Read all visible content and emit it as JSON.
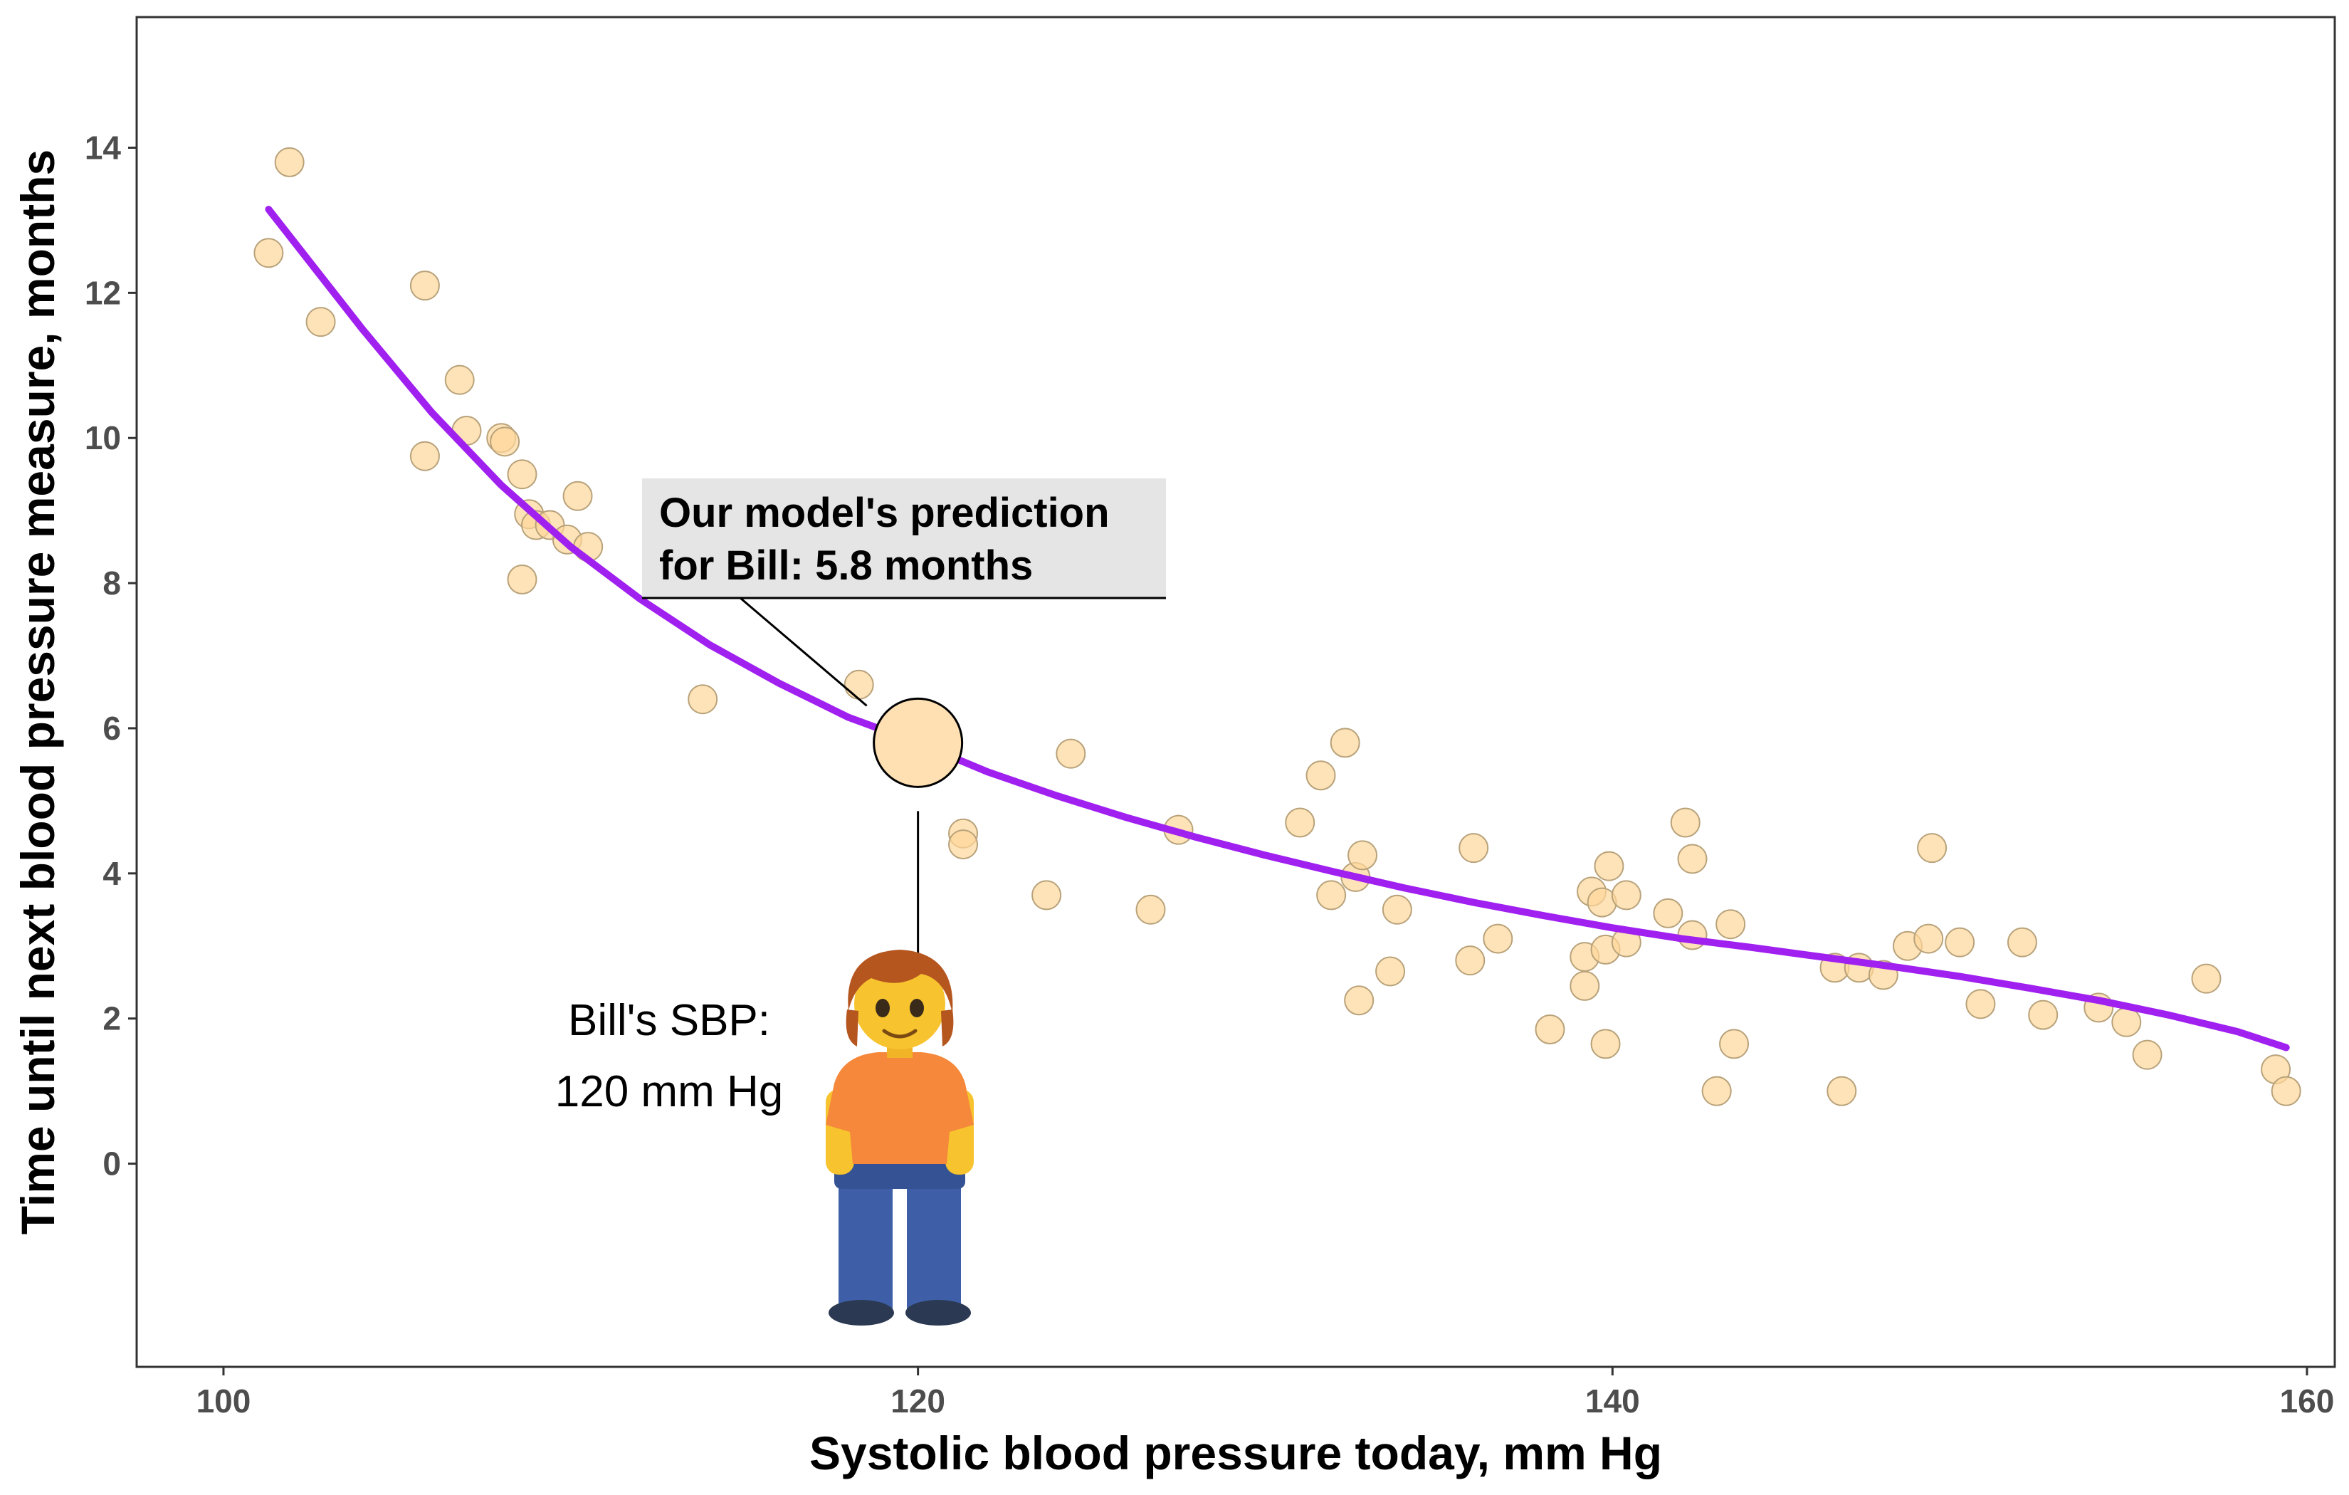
{
  "chart_data": {
    "type": "scatter",
    "xlabel": "Systolic blood pressure today, mm Hg",
    "ylabel": "Time until next blood pressure measure, months",
    "xlim": [
      97.5,
      160.8
    ],
    "ylim": [
      -2.8,
      15.8
    ],
    "x_ticks": [
      100,
      120,
      140,
      160
    ],
    "y_ticks": [
      0,
      2,
      4,
      6,
      8,
      10,
      12,
      14
    ],
    "grid": false,
    "legend": "none",
    "colors": {
      "points_fill": "#ffd79a",
      "points_stroke": "#b8a27a",
      "fit_line": "#a020f0",
      "callout_bg": "#e5e5e5",
      "panel_border": "#333333",
      "tick_text": "#4d4d4d"
    },
    "series": [
      {
        "kind": "points",
        "points": [
          [
            101.3,
            12.55
          ],
          [
            101.9,
            13.8
          ],
          [
            102.8,
            11.6
          ],
          [
            105.8,
            12.1
          ],
          [
            105.8,
            9.75
          ],
          [
            106.8,
            10.8
          ],
          [
            107.0,
            10.1
          ],
          [
            108.0,
            10.0
          ],
          [
            108.1,
            9.95
          ],
          [
            108.6,
            9.5
          ],
          [
            108.8,
            8.95
          ],
          [
            109.0,
            8.8
          ],
          [
            109.4,
            8.8
          ],
          [
            109.9,
            8.6
          ],
          [
            110.2,
            9.2
          ],
          [
            110.5,
            8.5
          ],
          [
            108.6,
            8.05
          ],
          [
            113.8,
            6.4
          ],
          [
            118.3,
            6.6
          ],
          [
            121.3,
            4.55
          ],
          [
            121.3,
            4.4
          ],
          [
            123.7,
            3.7
          ],
          [
            124.4,
            5.65
          ],
          [
            126.7,
            3.5
          ],
          [
            127.5,
            4.6
          ],
          [
            131.0,
            4.7
          ],
          [
            131.6,
            5.35
          ],
          [
            132.3,
            5.8
          ],
          [
            131.9,
            3.7
          ],
          [
            132.6,
            3.95
          ],
          [
            132.8,
            4.25
          ],
          [
            132.7,
            2.25
          ],
          [
            133.6,
            2.65
          ],
          [
            133.8,
            3.5
          ],
          [
            135.9,
            2.8
          ],
          [
            136.0,
            4.35
          ],
          [
            136.7,
            3.1
          ],
          [
            138.2,
            1.85
          ],
          [
            139.2,
            2.85
          ],
          [
            139.2,
            2.45
          ],
          [
            139.4,
            3.75
          ],
          [
            139.7,
            3.6
          ],
          [
            139.8,
            2.95
          ],
          [
            139.8,
            1.65
          ],
          [
            139.9,
            4.1
          ],
          [
            140.4,
            3.7
          ],
          [
            140.4,
            3.05
          ],
          [
            141.6,
            3.45
          ],
          [
            142.1,
            4.7
          ],
          [
            142.3,
            4.2
          ],
          [
            142.3,
            3.15
          ],
          [
            143.0,
            1.0
          ],
          [
            143.4,
            3.3
          ],
          [
            143.5,
            1.65
          ],
          [
            146.4,
            2.7
          ],
          [
            146.6,
            1.0
          ],
          [
            147.1,
            2.7
          ],
          [
            147.8,
            2.6
          ],
          [
            148.5,
            3.0
          ],
          [
            149.1,
            3.1
          ],
          [
            149.2,
            4.35
          ],
          [
            150.0,
            3.05
          ],
          [
            150.6,
            2.2
          ],
          [
            151.8,
            3.05
          ],
          [
            152.4,
            2.05
          ],
          [
            154.0,
            2.15
          ],
          [
            154.8,
            1.95
          ],
          [
            155.4,
            1.5
          ],
          [
            157.1,
            2.55
          ],
          [
            159.1,
            1.3
          ],
          [
            159.4,
            1.0
          ]
        ]
      },
      {
        "kind": "fit",
        "points": [
          [
            101.3,
            13.15
          ],
          [
            104,
            11.5
          ],
          [
            106,
            10.35
          ],
          [
            108,
            9.35
          ],
          [
            110,
            8.5
          ],
          [
            112,
            7.78
          ],
          [
            114,
            7.15
          ],
          [
            116,
            6.62
          ],
          [
            118,
            6.15
          ],
          [
            120,
            5.8
          ],
          [
            122,
            5.4
          ],
          [
            124,
            5.07
          ],
          [
            126,
            4.77
          ],
          [
            128,
            4.5
          ],
          [
            130,
            4.25
          ],
          [
            132,
            4.02
          ],
          [
            134,
            3.8
          ],
          [
            136,
            3.6
          ],
          [
            138,
            3.42
          ],
          [
            140,
            3.25
          ],
          [
            142,
            3.1
          ],
          [
            144,
            2.98
          ],
          [
            146,
            2.85
          ],
          [
            148,
            2.72
          ],
          [
            150,
            2.58
          ],
          [
            152,
            2.42
          ],
          [
            154,
            2.25
          ],
          [
            156,
            2.05
          ],
          [
            158,
            1.82
          ],
          [
            159.4,
            1.6
          ]
        ]
      }
    ],
    "highlight": {
      "x": 120,
      "y": 5.8
    },
    "callout": {
      "lines": [
        "Our model's prediction",
        "for Bill: 5.8 months"
      ]
    },
    "bill_note": {
      "lines": [
        "Bill's SBP:",
        "120 mm Hg"
      ],
      "icon": "person-icon"
    }
  }
}
